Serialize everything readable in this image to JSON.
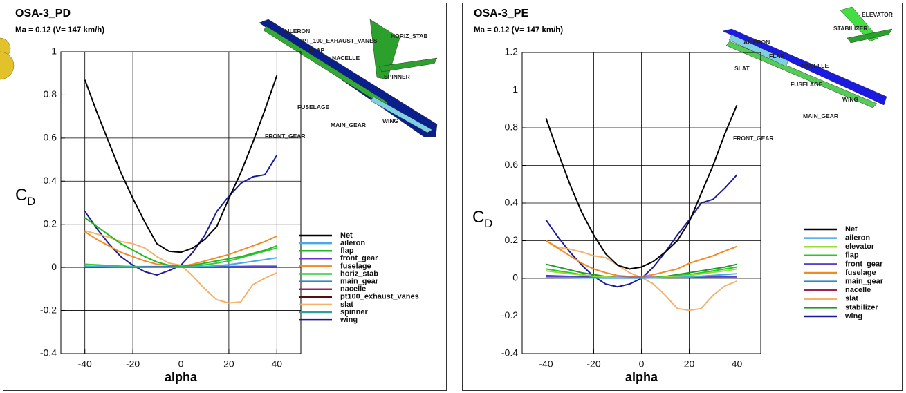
{
  "chart_data": [
    {
      "type": "line",
      "title": "OSA-3_PD",
      "subtitle": "Ma = 0.12 (V= 147 km/h)",
      "x_label": "alpha",
      "y_label": "C",
      "y_label_sub": "D",
      "xlim": [
        -50,
        50
      ],
      "xticks": [
        -40,
        -20,
        0,
        20,
        40
      ],
      "ylim": [
        -0.4,
        1
      ],
      "yticks": [
        -0.4,
        -0.2,
        0,
        0.2,
        0.4,
        0.6,
        0.8,
        1
      ],
      "grid": true,
      "annotations": [
        "AILERON",
        "PT_100_EXHAUST_VANES",
        "HORIZ_STAB",
        "FLAP",
        "NACELLE",
        "SPINNER",
        "FUSELAGE",
        "MAIN_GEAR",
        "WING",
        "FRONT_GEAR"
      ],
      "x": [
        -40,
        -35,
        -30,
        -25,
        -20,
        -15,
        -10,
        -5,
        0,
        5,
        10,
        15,
        20,
        25,
        30,
        35,
        40
      ],
      "series": [
        {
          "name": "Net",
          "color": "#000000",
          "values": [
            0.87,
            0.72,
            0.58,
            0.44,
            0.32,
            0.21,
            0.11,
            0.075,
            0.07,
            0.09,
            0.13,
            0.19,
            0.32,
            0.44,
            0.58,
            0.73,
            0.89
          ]
        },
        {
          "name": "aileron",
          "color": "#4aa8e8",
          "values": [
            0.005,
            0.004,
            0.003,
            0.002,
            0.002,
            0.001,
            0.001,
            0.001,
            0.001,
            0.002,
            0.004,
            0.008,
            0.013,
            0.02,
            0.028,
            0.036,
            0.045
          ]
        },
        {
          "name": "flap",
          "color": "#22b822",
          "values": [
            0.23,
            0.19,
            0.15,
            0.11,
            0.08,
            0.05,
            0.025,
            0.01,
            0.005,
            0.01,
            0.02,
            0.03,
            0.04,
            0.05,
            0.065,
            0.08,
            0.1
          ]
        },
        {
          "name": "front_gear",
          "color": "#6633cc",
          "values": [
            0.003,
            0.003,
            0.002,
            0.002,
            0.002,
            0.002,
            0.002,
            0.002,
            0.002,
            0.002,
            0.002,
            0.002,
            0.002,
            0.003,
            0.003,
            0.003,
            0.003
          ]
        },
        {
          "name": "fuselage",
          "color": "#f08a24",
          "values": [
            0.165,
            0.13,
            0.1,
            0.07,
            0.05,
            0.03,
            0.015,
            0.01,
            0.005,
            0.015,
            0.03,
            0.045,
            0.06,
            0.08,
            0.1,
            0.12,
            0.145
          ]
        },
        {
          "name": "horiz_stab",
          "color": "#33cc33",
          "values": [
            0.015,
            0.012,
            0.009,
            0.006,
            0.004,
            0.003,
            0.002,
            0.002,
            0.003,
            0.006,
            0.012,
            0.02,
            0.03,
            0.045,
            0.06,
            0.075,
            0.09
          ]
        },
        {
          "name": "main_gear",
          "color": "#2a8acc",
          "values": [
            0.006,
            0.005,
            0.005,
            0.004,
            0.004,
            0.004,
            0.004,
            0.004,
            0.004,
            0.004,
            0.004,
            0.005,
            0.005,
            0.005,
            0.006,
            0.006,
            0.006
          ]
        },
        {
          "name": "nacelle",
          "color": "#99225a",
          "values": [
            0.002,
            0.002,
            0.002,
            0.002,
            0.002,
            0.002,
            0.002,
            0.002,
            0.002,
            0.002,
            0.002,
            0.002,
            0.002,
            0.002,
            0.002,
            0.002,
            0.002
          ]
        },
        {
          "name": "pt100_exhaust_vanes",
          "color": "#550f0f",
          "values": [
            0.001,
            0.001,
            0.001,
            0.001,
            0.001,
            0.001,
            0.001,
            0.001,
            0.001,
            0.001,
            0.001,
            0.001,
            0.001,
            0.001,
            0.001,
            0.001,
            0.001
          ]
        },
        {
          "name": "slat",
          "color": "#f5b26b",
          "values": [
            0.17,
            0.155,
            0.14,
            0.12,
            0.11,
            0.09,
            0.05,
            0.02,
            0.01,
            -0.04,
            -0.1,
            -0.15,
            -0.165,
            -0.16,
            -0.08,
            -0.05,
            -0.025
          ]
        },
        {
          "name": "spinner",
          "color": "#2aa0a0",
          "values": [
            0.003,
            0.003,
            0.003,
            0.003,
            0.003,
            0.003,
            0.003,
            0.003,
            0.003,
            0.003,
            0.003,
            0.003,
            0.003,
            0.003,
            0.003,
            0.003,
            0.003
          ]
        },
        {
          "name": "wing",
          "color": "#1a1a99",
          "values": [
            0.26,
            0.18,
            0.11,
            0.05,
            0.01,
            -0.02,
            -0.035,
            -0.015,
            0.01,
            0.07,
            0.15,
            0.26,
            0.33,
            0.39,
            0.42,
            0.43,
            0.52
          ]
        }
      ]
    },
    {
      "type": "line",
      "title": "OSA-3_PE",
      "subtitle": "Ma = 0.12 (V= 147 km/h)",
      "x_label": "alpha",
      "y_label": "C",
      "y_label_sub": "D",
      "xlim": [
        -50,
        50
      ],
      "xticks": [
        -40,
        -20,
        0,
        20,
        40
      ],
      "ylim": [
        -0.4,
        1.2
      ],
      "yticks": [
        -0.4,
        -0.2,
        0,
        0.2,
        0.4,
        0.6,
        0.8,
        1,
        1.2
      ],
      "grid": true,
      "annotations": [
        "ELEVATOR",
        "STABILIZER",
        "AILERON",
        "NACELLE",
        "FLAP",
        "SLAT",
        "FUSELAGE",
        "WING",
        "MAIN_GEAR",
        "FRONT_GEAR"
      ],
      "x": [
        -40,
        -35,
        -30,
        -25,
        -20,
        -15,
        -10,
        -5,
        0,
        5,
        10,
        15,
        20,
        25,
        30,
        35,
        40
      ],
      "series": [
        {
          "name": "Net",
          "color": "#000000",
          "values": [
            0.85,
            0.67,
            0.5,
            0.35,
            0.23,
            0.13,
            0.07,
            0.05,
            0.06,
            0.09,
            0.14,
            0.2,
            0.3,
            0.45,
            0.6,
            0.77,
            0.92
          ]
        },
        {
          "name": "aileron",
          "color": "#4aa8e8",
          "values": [
            0.004,
            0.003,
            0.003,
            0.002,
            0.002,
            0.001,
            0.001,
            0.001,
            0.001,
            0.002,
            0.003,
            0.005,
            0.008,
            0.012,
            0.016,
            0.02,
            0.025
          ]
        },
        {
          "name": "elevator",
          "color": "#99dd33",
          "values": [
            0.04,
            0.032,
            0.025,
            0.018,
            0.012,
            0.008,
            0.004,
            0.002,
            0.002,
            0.003,
            0.006,
            0.01,
            0.016,
            0.024,
            0.032,
            0.04,
            0.05
          ]
        },
        {
          "name": "flap",
          "color": "#22cc22",
          "values": [
            0.05,
            0.04,
            0.03,
            0.02,
            0.01,
            0.005,
            0.003,
            0.002,
            0.002,
            0.004,
            0.008,
            0.015,
            0.02,
            0.03,
            0.04,
            0.05,
            0.06
          ]
        },
        {
          "name": "front_gear",
          "color": "#5544cc",
          "values": [
            0.01,
            0.009,
            0.008,
            0.007,
            0.006,
            0.005,
            0.005,
            0.005,
            0.005,
            0.005,
            0.005,
            0.006,
            0.007,
            0.008,
            0.009,
            0.01,
            0.01
          ]
        },
        {
          "name": "fuselage",
          "color": "#f08a24",
          "values": [
            0.2,
            0.16,
            0.12,
            0.08,
            0.05,
            0.03,
            0.015,
            0.01,
            0.01,
            0.02,
            0.035,
            0.05,
            0.08,
            0.1,
            0.12,
            0.145,
            0.17
          ]
        },
        {
          "name": "main_gear",
          "color": "#2a8acc",
          "values": [
            0.005,
            0.005,
            0.004,
            0.004,
            0.004,
            0.004,
            0.004,
            0.004,
            0.004,
            0.004,
            0.004,
            0.004,
            0.005,
            0.005,
            0.005,
            0.006,
            0.006
          ]
        },
        {
          "name": "nacelle",
          "color": "#99225a",
          "values": [
            0.015,
            0.013,
            0.011,
            0.01,
            0.008,
            0.007,
            0.006,
            0.006,
            0.006,
            0.006,
            0.006,
            0.007,
            0.007,
            0.008,
            0.009,
            0.01,
            0.01
          ]
        },
        {
          "name": "slat",
          "color": "#f5b26b",
          "values": [
            0.2,
            0.165,
            0.155,
            0.14,
            0.12,
            0.11,
            0.07,
            0.03,
            0.005,
            -0.03,
            -0.09,
            -0.16,
            -0.17,
            -0.16,
            -0.09,
            -0.04,
            -0.015
          ]
        },
        {
          "name": "stabilizer",
          "color": "#1f9a2a",
          "values": [
            0.075,
            0.06,
            0.045,
            0.03,
            0.02,
            0.01,
            0.005,
            0.002,
            0.003,
            0.005,
            0.01,
            0.02,
            0.03,
            0.04,
            0.05,
            0.06,
            0.075
          ]
        },
        {
          "name": "wing",
          "color": "#1a1a99",
          "values": [
            0.31,
            0.22,
            0.14,
            0.07,
            0.01,
            -0.03,
            -0.045,
            -0.03,
            0.0,
            0.06,
            0.14,
            0.23,
            0.31,
            0.4,
            0.42,
            0.48,
            0.55
          ]
        }
      ]
    }
  ]
}
